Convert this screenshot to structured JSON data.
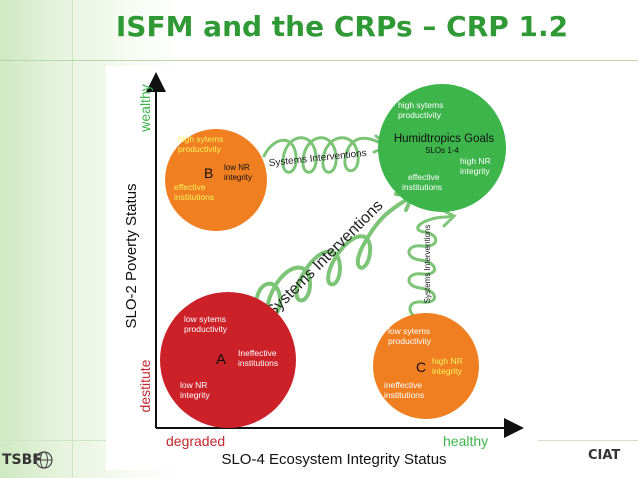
{
  "slide": {
    "title": "ISFM and the CRPs – CRP 1.2"
  },
  "axes": {
    "y_label": "SLO-2 Poverty Status",
    "y_top": "wealthy",
    "y_bottom": "destitute",
    "x_label": "SLO-4 Ecosystem Integrity Status",
    "x_left": "degraded",
    "x_right": "healthy"
  },
  "nodes": {
    "A": {
      "letter": "A",
      "line1": "low sytems",
      "line2": "productivity",
      "line3": "Ineffective",
      "line4": "institutions",
      "line5": "low NR",
      "line6": "integrity",
      "color": "#cc2129"
    },
    "B": {
      "letter": "B",
      "line1": "high sytems",
      "line2": "productivity",
      "line3": "low NR",
      "line4": "integrity",
      "line5": "effective",
      "line6": "institutions",
      "color": "#f07f22"
    },
    "C": {
      "letter": "C",
      "line1": "low sytems",
      "line2": "productivity",
      "line3": "high NR",
      "line4": "integrity",
      "line5": "ineffective",
      "line6": "institutions",
      "color": "#f07f22"
    },
    "goal": {
      "line1": "high sytems",
      "line2": "productivity",
      "heading": "Humidtropics Goals",
      "sub": "SLOs 1-4",
      "line3": "high NR",
      "line4": "integrity",
      "line5": "effective",
      "line6": "institutions",
      "color": "#3db54a"
    }
  },
  "arrows": {
    "top": "Systems Interventions",
    "diagonal": "Systems Interventions",
    "vertical": "Systems Interventions"
  },
  "footer": {
    "left_logo": "TSBF",
    "right_logo": "CIAT"
  },
  "colors": {
    "title_green": "#2f9a35",
    "arrow_green": "#7cc576",
    "axis_red": "#c1272d",
    "axis_green": "#3db54a"
  }
}
